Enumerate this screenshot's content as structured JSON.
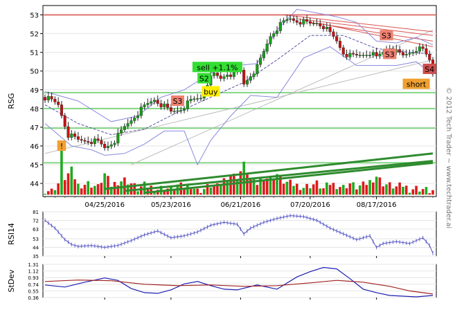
{
  "copyright": "© 2012 Tech Trader ~ www.techtrader.ai",
  "chart_data": [
    {
      "type": "candlestick",
      "ylabel": "RSG",
      "ylim": [
        43.3,
        53.5
      ],
      "yticks": [
        44,
        45,
        46,
        47,
        48,
        49,
        50,
        51,
        52,
        53
      ],
      "x_labels": [
        {
          "label": "04/25/2016",
          "bar": 18
        },
        {
          "label": "05/23/2016",
          "bar": 38
        },
        {
          "label": "06/21/2016",
          "bar": 59
        },
        {
          "label": "07/20/2016",
          "bar": 80
        },
        {
          "label": "08/17/2016",
          "bar": 100
        }
      ],
      "bars": 118,
      "close_path": [
        [
          0,
          48.6
        ],
        [
          4,
          48.2
        ],
        [
          7,
          46.6
        ],
        [
          10,
          46.3
        ],
        [
          13,
          46.3
        ],
        [
          16,
          46.2
        ],
        [
          18,
          45.9
        ],
        [
          21,
          46.3
        ],
        [
          24,
          47.0
        ],
        [
          27,
          47.6
        ],
        [
          30,
          48.1
        ],
        [
          33,
          48.5
        ],
        [
          36,
          48.1
        ],
        [
          38,
          47.8
        ],
        [
          41,
          48.0
        ],
        [
          44,
          48.4
        ],
        [
          47,
          48.6
        ],
        [
          49,
          49.4
        ],
        [
          51,
          49.8
        ],
        [
          53,
          49.6
        ],
        [
          55,
          49.9
        ],
        [
          57,
          49.8
        ],
        [
          59,
          50.0
        ],
        [
          60,
          49.3
        ],
        [
          62,
          49.8
        ],
        [
          64,
          50.2
        ],
        [
          66,
          51.0
        ],
        [
          68,
          51.9
        ],
        [
          70,
          52.3
        ],
        [
          72,
          52.6
        ],
        [
          74,
          52.8
        ],
        [
          76,
          52.7
        ],
        [
          78,
          52.6
        ],
        [
          80,
          52.5
        ],
        [
          82,
          52.6
        ],
        [
          84,
          52.4
        ],
        [
          86,
          52.0
        ],
        [
          88,
          51.6
        ],
        [
          90,
          51.0
        ],
        [
          92,
          50.8
        ],
        [
          94,
          50.8
        ],
        [
          96,
          50.9
        ],
        [
          98,
          51.0
        ],
        [
          100,
          50.7
        ],
        [
          102,
          51.0
        ],
        [
          104,
          51.3
        ],
        [
          106,
          51.0
        ],
        [
          108,
          50.8
        ],
        [
          110,
          51.0
        ],
        [
          112,
          51.2
        ],
        [
          114,
          51.1
        ],
        [
          116,
          50.6
        ],
        [
          117,
          49.9
        ]
      ],
      "volume_path": [
        [
          0,
          43.65
        ],
        [
          2,
          43.6
        ],
        [
          4,
          44.0
        ],
        [
          5,
          45.6
        ],
        [
          6,
          44.3
        ],
        [
          8,
          44.7
        ],
        [
          10,
          43.9
        ],
        [
          13,
          44.0
        ],
        [
          16,
          43.8
        ],
        [
          18,
          44.5
        ],
        [
          20,
          43.9
        ],
        [
          22,
          44.1
        ],
        [
          24,
          44.2
        ],
        [
          26,
          44.0
        ],
        [
          28,
          43.7
        ],
        [
          30,
          43.9
        ],
        [
          32,
          43.8
        ],
        [
          34,
          43.7
        ],
        [
          36,
          43.8
        ],
        [
          38,
          43.65
        ],
        [
          40,
          43.9
        ],
        [
          42,
          43.8
        ],
        [
          44,
          43.9
        ],
        [
          46,
          43.6
        ],
        [
          48,
          43.7
        ],
        [
          50,
          43.9
        ],
        [
          52,
          43.8
        ],
        [
          54,
          44.2
        ],
        [
          56,
          44.5
        ],
        [
          58,
          44.3
        ],
        [
          60,
          45.0
        ],
        [
          62,
          44.2
        ],
        [
          64,
          44.0
        ],
        [
          66,
          44.4
        ],
        [
          68,
          44.2
        ],
        [
          70,
          44.5
        ],
        [
          72,
          44.1
        ],
        [
          74,
          44.0
        ],
        [
          76,
          43.9
        ],
        [
          78,
          43.8
        ],
        [
          80,
          43.9
        ],
        [
          82,
          44.0
        ],
        [
          84,
          43.7
        ],
        [
          86,
          44.0
        ],
        [
          88,
          43.9
        ],
        [
          90,
          43.8
        ],
        [
          92,
          44.0
        ],
        [
          94,
          43.8
        ],
        [
          96,
          43.9
        ],
        [
          98,
          44.1
        ],
        [
          100,
          44.4
        ],
        [
          102,
          44.0
        ],
        [
          104,
          43.9
        ],
        [
          106,
          43.8
        ],
        [
          108,
          43.9
        ],
        [
          110,
          43.7
        ],
        [
          112,
          43.75
        ],
        [
          114,
          43.7
        ],
        [
          116,
          43.6
        ],
        [
          117,
          43.6
        ]
      ],
      "moving_average_path": [
        [
          0,
          48.2
        ],
        [
          10,
          47.2
        ],
        [
          20,
          46.6
        ],
        [
          30,
          46.9
        ],
        [
          40,
          47.8
        ],
        [
          50,
          48.6
        ],
        [
          60,
          49.4
        ],
        [
          70,
          50.6
        ],
        [
          80,
          51.9
        ],
        [
          90,
          51.9
        ],
        [
          100,
          51.2
        ],
        [
          110,
          51.0
        ],
        [
          117,
          50.9
        ]
      ],
      "bollinger_upper_path": [
        [
          0,
          48.9
        ],
        [
          10,
          48.4
        ],
        [
          20,
          47.3
        ],
        [
          28,
          47.6
        ],
        [
          35,
          48.6
        ],
        [
          42,
          49.0
        ],
        [
          50,
          49.9
        ],
        [
          58,
          50.3
        ],
        [
          64,
          50.4
        ],
        [
          70,
          52.2
        ],
        [
          76,
          53.3
        ],
        [
          82,
          53.1
        ],
        [
          88,
          52.9
        ],
        [
          94,
          52.6
        ],
        [
          100,
          51.6
        ],
        [
          106,
          51.5
        ],
        [
          112,
          51.8
        ],
        [
          117,
          51.4
        ]
      ],
      "bollinger_lower_path": [
        [
          0,
          47.2
        ],
        [
          8,
          46.0
        ],
        [
          14,
          45.8
        ],
        [
          18,
          45.5
        ],
        [
          24,
          45.6
        ],
        [
          30,
          46.1
        ],
        [
          36,
          46.8
        ],
        [
          42,
          46.8
        ],
        [
          46,
          45.0
        ],
        [
          50,
          46.3
        ],
        [
          56,
          47.6
        ],
        [
          62,
          48.7
        ],
        [
          70,
          48.6
        ],
        [
          78,
          50.7
        ],
        [
          86,
          51.3
        ],
        [
          94,
          50.3
        ],
        [
          100,
          50.3
        ],
        [
          106,
          50.3
        ],
        [
          112,
          50.5
        ],
        [
          117,
          49.8
        ]
      ],
      "horizontal_levels": [
        {
          "value": 53.0,
          "color": "#d9534f"
        },
        {
          "value": 48.85,
          "color": "#66cc66"
        },
        {
          "value": 48.0,
          "color": "#66cc66"
        },
        {
          "value": 46.95,
          "color": "#66cc66"
        },
        {
          "value": 45.1,
          "color": "#66cc66"
        }
      ],
      "trend_lines": [
        {
          "from": [
            0,
            45.6
          ],
          "to": [
            117,
            50.6
          ],
          "color": "#bbbbbb"
        },
        {
          "from": [
            26,
            45.0
          ],
          "to": [
            117,
            52.2
          ],
          "color": "#bbbbbb"
        },
        {
          "from": [
            72,
            53.0
          ],
          "to": [
            117,
            52.1
          ],
          "color": "#d9534f"
        },
        {
          "from": [
            76,
            52.8
          ],
          "to": [
            117,
            51.9
          ],
          "color": "#d9534f"
        },
        {
          "from": [
            80,
            52.6
          ],
          "to": [
            117,
            51.6
          ],
          "color": "#d9534f"
        },
        {
          "from": [
            84,
            52.5
          ],
          "to": [
            117,
            51.3
          ],
          "color": "#d9534f"
        },
        {
          "from": [
            18,
            43.7
          ],
          "to": [
            117,
            45.6
          ],
          "color": "#2e8b2e"
        },
        {
          "from": [
            24,
            43.6
          ],
          "to": [
            117,
            45.2
          ],
          "color": "#2e8b2e"
        },
        {
          "from": [
            30,
            43.5
          ],
          "to": [
            117,
            45.1
          ],
          "color": "#2e8b2e"
        }
      ],
      "signals": [
        {
          "label": "!",
          "bar": 5,
          "value": 46.0,
          "color": "#f0a030"
        },
        {
          "label": "S3",
          "bar": 40,
          "value": 48.4,
          "color": "#f08070"
        },
        {
          "label": "S2",
          "bar": 48,
          "value": 49.6,
          "color": "#33dd33"
        },
        {
          "label": "sell +1.1%",
          "bar": 52,
          "value": 50.2,
          "color": "#33dd33"
        },
        {
          "label": "buy",
          "bar": 50,
          "value": 48.9,
          "color": "#ffee00"
        },
        {
          "label": "S3",
          "bar": 103,
          "value": 51.9,
          "color": "#f08070"
        },
        {
          "label": "S3",
          "bar": 104,
          "value": 50.9,
          "color": "#f08070"
        },
        {
          "label": "S4",
          "bar": 116,
          "value": 50.1,
          "color": "#d05050"
        },
        {
          "label": "short",
          "bar": 112,
          "value": 49.3,
          "color": "#f0a030"
        }
      ]
    },
    {
      "type": "line",
      "ylabel": "RSI14",
      "ylim": [
        35,
        81
      ],
      "yticks": [
        35,
        44,
        53,
        63,
        72,
        81
      ],
      "values_path": [
        [
          0,
          72
        ],
        [
          3,
          64
        ],
        [
          6,
          52
        ],
        [
          8,
          47
        ],
        [
          10,
          45
        ],
        [
          14,
          46
        ],
        [
          18,
          44
        ],
        [
          22,
          46
        ],
        [
          26,
          51
        ],
        [
          30,
          57
        ],
        [
          34,
          61
        ],
        [
          38,
          54
        ],
        [
          42,
          56
        ],
        [
          46,
          60
        ],
        [
          50,
          67
        ],
        [
          54,
          70
        ],
        [
          58,
          68
        ],
        [
          60,
          58
        ],
        [
          62,
          64
        ],
        [
          66,
          70
        ],
        [
          70,
          74
        ],
        [
          74,
          77
        ],
        [
          78,
          76
        ],
        [
          82,
          72
        ],
        [
          86,
          64
        ],
        [
          90,
          58
        ],
        [
          94,
          52
        ],
        [
          98,
          56
        ],
        [
          100,
          44
        ],
        [
          102,
          48
        ],
        [
          106,
          50
        ],
        [
          110,
          48
        ],
        [
          114,
          54
        ],
        [
          116,
          46
        ],
        [
          117,
          38
        ]
      ]
    },
    {
      "type": "line",
      "ylabel": "StDev",
      "ylim": [
        0.36,
        1.31
      ],
      "yticks": [
        0.36,
        0.55,
        0.74,
        0.93,
        1.12,
        1.31
      ],
      "series": [
        {
          "color": "#1c1cb0",
          "values_path": [
            [
              0,
              0.72
            ],
            [
              6,
              0.66
            ],
            [
              12,
              0.8
            ],
            [
              18,
              0.92
            ],
            [
              22,
              0.85
            ],
            [
              26,
              0.62
            ],
            [
              30,
              0.5
            ],
            [
              34,
              0.48
            ],
            [
              38,
              0.58
            ],
            [
              42,
              0.75
            ],
            [
              46,
              0.82
            ],
            [
              50,
              0.7
            ],
            [
              54,
              0.6
            ],
            [
              58,
              0.58
            ],
            [
              64,
              0.72
            ],
            [
              70,
              0.6
            ],
            [
              76,
              0.95
            ],
            [
              80,
              1.1
            ],
            [
              84,
              1.22
            ],
            [
              88,
              1.18
            ],
            [
              92,
              0.9
            ],
            [
              96,
              0.6
            ],
            [
              100,
              0.5
            ],
            [
              104,
              0.42
            ],
            [
              108,
              0.4
            ],
            [
              112,
              0.38
            ],
            [
              117,
              0.42
            ]
          ]
        },
        {
          "color": "#a02020",
          "values_path": [
            [
              0,
              0.82
            ],
            [
              10,
              0.86
            ],
            [
              20,
              0.84
            ],
            [
              30,
              0.74
            ],
            [
              40,
              0.7
            ],
            [
              50,
              0.72
            ],
            [
              60,
              0.68
            ],
            [
              70,
              0.7
            ],
            [
              80,
              0.78
            ],
            [
              88,
              0.85
            ],
            [
              96,
              0.8
            ],
            [
              104,
              0.68
            ],
            [
              110,
              0.55
            ],
            [
              117,
              0.46
            ]
          ]
        }
      ]
    }
  ]
}
